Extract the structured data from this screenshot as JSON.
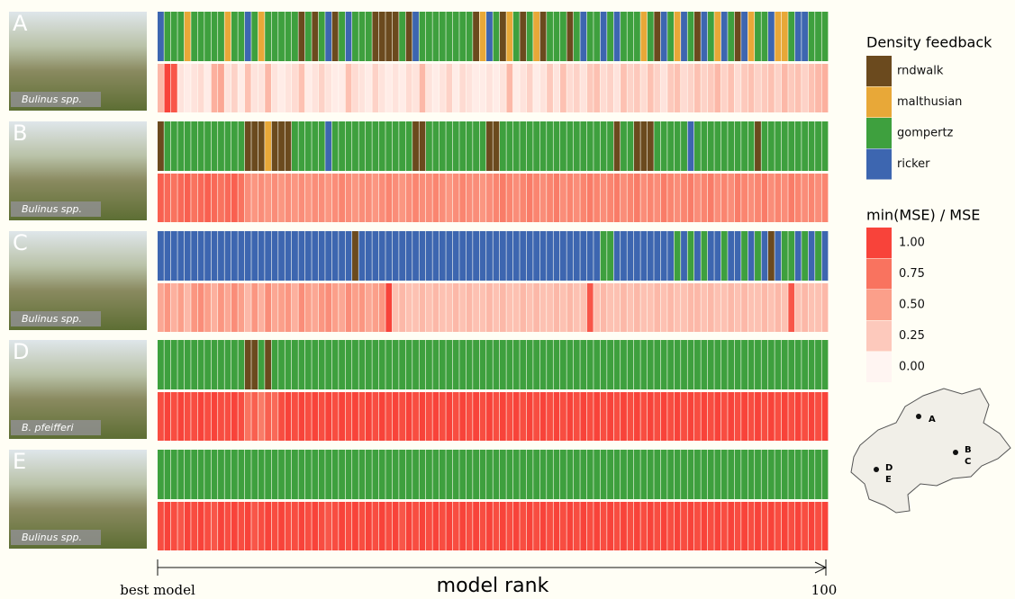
{
  "panels": [
    {
      "label": "A",
      "species": "Bulinus spp.",
      "feedback": [
        "ricker",
        "gompertz",
        "gompertz",
        "gompertz",
        "malthusian",
        "gompertz",
        "gompertz",
        "gompertz",
        "gompertz",
        "gompertz",
        "malthusian",
        "gompertz",
        "gompertz",
        "ricker",
        "gompertz",
        "malthusian",
        "gompertz",
        "gompertz",
        "gompertz",
        "gompertz",
        "gompertz",
        "rndwalk",
        "gompertz",
        "rndwalk",
        "gompertz",
        "ricker",
        "rndwalk",
        "gompertz",
        "ricker",
        "gompertz",
        "gompertz",
        "gompertz",
        "rndwalk",
        "rndwalk",
        "rndwalk",
        "rndwalk",
        "gompertz",
        "rndwalk",
        "ricker",
        "gompertz",
        "gompertz",
        "gompertz",
        "gompertz",
        "gompertz",
        "gompertz",
        "gompertz",
        "gompertz",
        "rndwalk",
        "malthusian",
        "ricker",
        "gompertz",
        "rndwalk",
        "malthusian",
        "gompertz",
        "rndwalk",
        "gompertz",
        "malthusian",
        "rndwalk",
        "gompertz",
        "gompertz",
        "gompertz",
        "rndwalk",
        "gompertz",
        "ricker",
        "gompertz",
        "gompertz",
        "ricker",
        "gompertz",
        "ricker",
        "gompertz",
        "gompertz",
        "gompertz",
        "malthusian",
        "gompertz",
        "rndwalk",
        "ricker",
        "gompertz",
        "malthusian",
        "ricker",
        "gompertz",
        "rndwalk",
        "ricker",
        "gompertz",
        "malthusian",
        "ricker",
        "gompertz",
        "rndwalk",
        "ricker",
        "malthusian",
        "gompertz",
        "gompertz",
        "ricker",
        "malthusian",
        "malthusian",
        "gompertz",
        "ricker",
        "ricker",
        "gompertz",
        "gompertz",
        "gompertz"
      ],
      "mse": [
        0.35,
        1.0,
        0.9,
        0.1,
        0.05,
        0.1,
        0.15,
        0.05,
        0.4,
        0.45,
        0.1,
        0.2,
        0.05,
        0.3,
        0.1,
        0.1,
        0.35,
        0.1,
        0.05,
        0.1,
        0.15,
        0.3,
        0.05,
        0.1,
        0.2,
        0.1,
        0.05,
        0.05,
        0.3,
        0.15,
        0.1,
        0.05,
        0.2,
        0.1,
        0.05,
        0.1,
        0.05,
        0.15,
        0.1,
        0.35,
        0.1,
        0.05,
        0.1,
        0.2,
        0.05,
        0.15,
        0.1,
        0.05,
        0.05,
        0.1,
        0.05,
        0.1,
        0.35,
        0.05,
        0.1,
        0.2,
        0.05,
        0.1,
        0.25,
        0.1,
        0.3,
        0.15,
        0.2,
        0.1,
        0.25,
        0.3,
        0.15,
        0.2,
        0.1,
        0.3,
        0.2,
        0.25,
        0.15,
        0.3,
        0.2,
        0.1,
        0.25,
        0.3,
        0.15,
        0.2,
        0.3,
        0.2,
        0.25,
        0.35,
        0.2,
        0.3,
        0.15,
        0.25,
        0.3,
        0.2,
        0.25,
        0.3,
        0.2,
        0.35,
        0.25,
        0.3,
        0.2,
        0.3,
        0.35,
        0.4
      ]
    },
    {
      "label": "B",
      "species": "Bulinus spp.",
      "feedback": [
        "rndwalk",
        "gompertz",
        "gompertz",
        "gompertz",
        "gompertz",
        "gompertz",
        "gompertz",
        "gompertz",
        "gompertz",
        "gompertz",
        "gompertz",
        "gompertz",
        "gompertz",
        "rndwalk",
        "rndwalk",
        "rndwalk",
        "malthusian",
        "rndwalk",
        "rndwalk",
        "rndwalk",
        "gompertz",
        "gompertz",
        "gompertz",
        "gompertz",
        "gompertz",
        "ricker",
        "gompertz",
        "gompertz",
        "gompertz",
        "gompertz",
        "gompertz",
        "gompertz",
        "gompertz",
        "gompertz",
        "gompertz",
        "gompertz",
        "gompertz",
        "gompertz",
        "rndwalk",
        "rndwalk",
        "gompertz",
        "gompertz",
        "gompertz",
        "gompertz",
        "gompertz",
        "gompertz",
        "gompertz",
        "gompertz",
        "gompertz",
        "rndwalk",
        "rndwalk",
        "gompertz",
        "gompertz",
        "gompertz",
        "gompertz",
        "gompertz",
        "gompertz",
        "gompertz",
        "gompertz",
        "gompertz",
        "gompertz",
        "gompertz",
        "gompertz",
        "gompertz",
        "gompertz",
        "gompertz",
        "gompertz",
        "gompertz",
        "rndwalk",
        "gompertz",
        "gompertz",
        "rndwalk",
        "rndwalk",
        "rndwalk",
        "gompertz",
        "gompertz",
        "gompertz",
        "gompertz",
        "gompertz",
        "ricker",
        "gompertz",
        "gompertz",
        "gompertz",
        "gompertz",
        "gompertz",
        "gompertz",
        "gompertz",
        "gompertz",
        "gompertz",
        "rndwalk",
        "gompertz",
        "gompertz",
        "gompertz",
        "gompertz",
        "gompertz",
        "gompertz",
        "gompertz",
        "gompertz",
        "gompertz",
        "gompertz"
      ],
      "mse": [
        0.85,
        0.8,
        0.75,
        0.8,
        0.85,
        0.75,
        0.8,
        0.85,
        0.8,
        0.75,
        0.8,
        0.85,
        0.75,
        0.6,
        0.55,
        0.6,
        0.55,
        0.6,
        0.55,
        0.6,
        0.55,
        0.6,
        0.55,
        0.6,
        0.6,
        0.55,
        0.6,
        0.65,
        0.6,
        0.55,
        0.6,
        0.6,
        0.55,
        0.6,
        0.65,
        0.6,
        0.55,
        0.6,
        0.65,
        0.6,
        0.6,
        0.65,
        0.6,
        0.55,
        0.6,
        0.65,
        0.6,
        0.6,
        0.55,
        0.6,
        0.65,
        0.7,
        0.65,
        0.6,
        0.65,
        0.7,
        0.65,
        0.6,
        0.65,
        0.7,
        0.6,
        0.65,
        0.6,
        0.65,
        0.7,
        0.65,
        0.6,
        0.65,
        0.7,
        0.6,
        0.65,
        0.7,
        0.6,
        0.65,
        0.6,
        0.7,
        0.65,
        0.6,
        0.65,
        0.7,
        0.6,
        0.65,
        0.7,
        0.6,
        0.65,
        0.6,
        0.7,
        0.65,
        0.6,
        0.65,
        0.7,
        0.6,
        0.65,
        0.6,
        0.7,
        0.65,
        0.6,
        0.65,
        0.6,
        0.65
      ]
    },
    {
      "label": "C",
      "species": "Bulinus spp.",
      "feedback": [
        "ricker",
        "ricker",
        "ricker",
        "ricker",
        "ricker",
        "ricker",
        "ricker",
        "ricker",
        "ricker",
        "ricker",
        "ricker",
        "ricker",
        "ricker",
        "ricker",
        "ricker",
        "ricker",
        "ricker",
        "ricker",
        "ricker",
        "ricker",
        "ricker",
        "ricker",
        "ricker",
        "ricker",
        "ricker",
        "ricker",
        "ricker",
        "ricker",
        "ricker",
        "rndwalk",
        "ricker",
        "ricker",
        "ricker",
        "ricker",
        "ricker",
        "ricker",
        "ricker",
        "ricker",
        "ricker",
        "ricker",
        "ricker",
        "ricker",
        "ricker",
        "ricker",
        "ricker",
        "ricker",
        "ricker",
        "ricker",
        "ricker",
        "ricker",
        "ricker",
        "ricker",
        "ricker",
        "ricker",
        "ricker",
        "ricker",
        "ricker",
        "ricker",
        "ricker",
        "ricker",
        "ricker",
        "ricker",
        "ricker",
        "ricker",
        "ricker",
        "ricker",
        "gompertz",
        "gompertz",
        "ricker",
        "ricker",
        "ricker",
        "ricker",
        "ricker",
        "ricker",
        "ricker",
        "ricker",
        "ricker",
        "gompertz",
        "ricker",
        "gompertz",
        "ricker",
        "gompertz",
        "ricker",
        "ricker",
        "gompertz",
        "ricker",
        "ricker",
        "gompertz",
        "ricker",
        "gompertz",
        "ricker",
        "rndwalk",
        "ricker",
        "gompertz",
        "gompertz",
        "ricker",
        "gompertz",
        "ricker",
        "gompertz",
        "ricker"
      ],
      "mse": [
        0.45,
        0.55,
        0.4,
        0.5,
        0.35,
        0.55,
        0.6,
        0.5,
        0.4,
        0.55,
        0.45,
        0.6,
        0.5,
        0.35,
        0.55,
        0.4,
        0.6,
        0.45,
        0.5,
        0.55,
        0.4,
        0.6,
        0.5,
        0.45,
        0.55,
        0.6,
        0.5,
        0.45,
        0.6,
        0.5,
        0.55,
        0.45,
        0.5,
        0.55,
        1.0,
        0.3,
        0.35,
        0.3,
        0.3,
        0.35,
        0.3,
        0.35,
        0.3,
        0.3,
        0.35,
        0.3,
        0.35,
        0.3,
        0.3,
        0.35,
        0.3,
        0.35,
        0.3,
        0.3,
        0.35,
        0.3,
        0.35,
        0.3,
        0.3,
        0.35,
        0.3,
        0.35,
        0.3,
        0.3,
        0.9,
        0.3,
        0.35,
        0.3,
        0.3,
        0.35,
        0.3,
        0.35,
        0.3,
        0.3,
        0.35,
        0.3,
        0.35,
        0.3,
        0.3,
        0.35,
        0.35,
        0.3,
        0.35,
        0.3,
        0.3,
        0.35,
        0.3,
        0.35,
        0.3,
        0.3,
        0.35,
        0.3,
        0.35,
        0.3,
        0.9,
        0.3,
        0.35,
        0.3,
        0.3,
        0.35
      ]
    },
    {
      "label": "D",
      "species": "B. pfeifferi",
      "feedback": [
        "gompertz",
        "gompertz",
        "gompertz",
        "gompertz",
        "gompertz",
        "gompertz",
        "gompertz",
        "gompertz",
        "gompertz",
        "gompertz",
        "gompertz",
        "gompertz",
        "gompertz",
        "rndwalk",
        "rndwalk",
        "gompertz",
        "rndwalk",
        "gompertz",
        "gompertz",
        "gompertz",
        "gompertz",
        "gompertz",
        "gompertz",
        "gompertz",
        "gompertz",
        "gompertz",
        "gompertz",
        "gompertz",
        "gompertz",
        "gompertz",
        "gompertz",
        "gompertz",
        "gompertz",
        "gompertz",
        "gompertz",
        "gompertz",
        "gompertz",
        "gompertz",
        "gompertz",
        "gompertz",
        "gompertz",
        "gompertz",
        "gompertz",
        "gompertz",
        "gompertz",
        "gompertz",
        "gompertz",
        "gompertz",
        "gompertz",
        "gompertz",
        "gompertz",
        "gompertz",
        "gompertz",
        "gompertz",
        "gompertz",
        "gompertz",
        "gompertz",
        "gompertz",
        "gompertz",
        "gompertz",
        "gompertz",
        "gompertz",
        "gompertz",
        "gompertz",
        "gompertz",
        "gompertz",
        "gompertz",
        "gompertz",
        "gompertz",
        "gompertz",
        "gompertz",
        "gompertz",
        "gompertz",
        "gompertz",
        "gompertz",
        "gompertz",
        "gompertz",
        "gompertz",
        "gompertz",
        "gompertz",
        "gompertz",
        "gompertz",
        "gompertz",
        "gompertz",
        "gompertz",
        "gompertz",
        "gompertz",
        "gompertz",
        "gompertz",
        "gompertz",
        "gompertz",
        "gompertz",
        "gompertz",
        "gompertz",
        "gompertz",
        "gompertz",
        "gompertz",
        "gompertz",
        "gompertz",
        "gompertz"
      ],
      "mse": [
        0.95,
        1.0,
        0.95,
        1.0,
        0.95,
        0.95,
        1.0,
        0.95,
        1.0,
        0.95,
        0.95,
        1.0,
        0.95,
        0.75,
        0.85,
        0.7,
        0.85,
        0.8,
        0.95,
        1.0,
        0.95,
        1.0,
        0.95,
        1.0,
        0.95,
        1.0,
        0.95,
        1.0,
        0.95,
        1.0,
        0.95,
        1.0,
        0.95,
        1.0,
        0.95,
        1.0,
        0.95,
        1.0,
        0.95,
        1.0,
        0.95,
        1.0,
        0.95,
        1.0,
        0.95,
        1.0,
        0.95,
        1.0,
        0.95,
        1.0,
        0.95,
        1.0,
        0.95,
        1.0,
        0.95,
        1.0,
        0.95,
        1.0,
        0.95,
        1.0,
        0.95,
        1.0,
        0.95,
        1.0,
        0.95,
        1.0,
        0.95,
        1.0,
        0.95,
        1.0,
        0.95,
        1.0,
        0.95,
        1.0,
        0.95,
        1.0,
        0.95,
        1.0,
        0.95,
        1.0,
        0.95,
        1.0,
        0.95,
        1.0,
        0.95,
        1.0,
        0.95,
        1.0,
        0.95,
        1.0,
        0.95,
        1.0,
        0.95,
        1.0,
        0.95,
        1.0,
        0.95,
        1.0,
        0.95,
        1.0
      ]
    },
    {
      "label": "E",
      "species": "Bulinus spp.",
      "feedback": [
        "gompertz",
        "gompertz",
        "gompertz",
        "gompertz",
        "gompertz",
        "gompertz",
        "gompertz",
        "gompertz",
        "gompertz",
        "gompertz",
        "gompertz",
        "gompertz",
        "gompertz",
        "gompertz",
        "gompertz",
        "gompertz",
        "gompertz",
        "gompertz",
        "gompertz",
        "gompertz",
        "gompertz",
        "gompertz",
        "gompertz",
        "gompertz",
        "gompertz",
        "gompertz",
        "gompertz",
        "gompertz",
        "gompertz",
        "gompertz",
        "gompertz",
        "gompertz",
        "gompertz",
        "gompertz",
        "gompertz",
        "gompertz",
        "gompertz",
        "gompertz",
        "gompertz",
        "gompertz",
        "gompertz",
        "gompertz",
        "gompertz",
        "gompertz",
        "gompertz",
        "gompertz",
        "gompertz",
        "gompertz",
        "gompertz",
        "gompertz",
        "gompertz",
        "gompertz",
        "gompertz",
        "gompertz",
        "gompertz",
        "gompertz",
        "gompertz",
        "gompertz",
        "gompertz",
        "gompertz",
        "gompertz",
        "gompertz",
        "gompertz",
        "gompertz",
        "gompertz",
        "gompertz",
        "gompertz",
        "gompertz",
        "gompertz",
        "gompertz",
        "gompertz",
        "gompertz",
        "gompertz",
        "gompertz",
        "gompertz",
        "gompertz",
        "gompertz",
        "gompertz",
        "gompertz",
        "gompertz",
        "gompertz",
        "gompertz",
        "gompertz",
        "gompertz",
        "gompertz",
        "gompertz",
        "gompertz",
        "gompertz",
        "gompertz",
        "gompertz",
        "gompertz",
        "gompertz",
        "gompertz",
        "gompertz",
        "gompertz",
        "gompertz",
        "gompertz",
        "gompertz",
        "gompertz",
        "gompertz"
      ],
      "mse": [
        0.95,
        1.0,
        0.95,
        0.9,
        1.0,
        0.95,
        1.0,
        0.95,
        0.9,
        1.0,
        0.95,
        1.0,
        0.95,
        1.0,
        0.9,
        0.95,
        1.0,
        0.95,
        1.0,
        0.95,
        0.95,
        1.0,
        0.95,
        1.0,
        0.95,
        0.9,
        0.95,
        1.0,
        0.95,
        1.0,
        0.95,
        1.0,
        0.95,
        1.0,
        0.95,
        1.0,
        0.9,
        1.0,
        0.95,
        1.0,
        0.95,
        1.0,
        0.95,
        1.0,
        0.95,
        1.0,
        0.95,
        1.0,
        0.95,
        1.0,
        0.95,
        1.0,
        0.95,
        1.0,
        0.95,
        1.0,
        0.95,
        1.0,
        0.95,
        1.0,
        0.95,
        1.0,
        0.95,
        1.0,
        0.95,
        1.0,
        0.95,
        1.0,
        0.95,
        1.0,
        0.95,
        1.0,
        0.95,
        1.0,
        0.95,
        1.0,
        0.95,
        1.0,
        0.95,
        1.0,
        0.95,
        1.0,
        0.95,
        1.0,
        0.95,
        1.0,
        0.95,
        1.0,
        0.95,
        1.0,
        0.95,
        1.0,
        0.95,
        1.0,
        0.95,
        1.0,
        0.95,
        1.0,
        0.95,
        1.0
      ]
    }
  ],
  "legend": {
    "feedback_title": "Density feedback",
    "feedback": [
      {
        "name": "rndwalk",
        "color": "#6b4a1e"
      },
      {
        "name": "malthusian",
        "color": "#e8a838"
      },
      {
        "name": "gompertz",
        "color": "#3ea03e"
      },
      {
        "name": "ricker",
        "color": "#3d66b0"
      }
    ],
    "mse_title": "min(MSE) / MSE",
    "mse_ticks": [
      {
        "value": 1,
        "label": "1.00",
        "color": "#f8433a"
      },
      {
        "value": 0.75,
        "label": "0.75",
        "color": "#f9735f"
      },
      {
        "value": 0.5,
        "label": "0.50",
        "color": "#fb9f8a"
      },
      {
        "value": 0.25,
        "label": "0.25",
        "color": "#fdc9bc"
      },
      {
        "value": 0,
        "label": "0.00",
        "color": "#fff5f2"
      }
    ]
  },
  "x_axis": {
    "start_label": "best model",
    "title": "model rank",
    "end_label": "100"
  },
  "map": {
    "labels": [
      "A",
      "B",
      "C",
      "D",
      "E"
    ]
  }
}
